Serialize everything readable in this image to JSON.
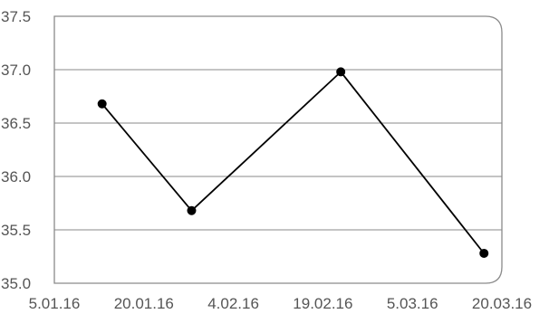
{
  "chart_data": {
    "type": "line",
    "x_axis": {
      "type": "date",
      "ticks": [
        "2016-01-05",
        "2016-01-20",
        "2016-02-04",
        "2016-02-19",
        "2016-03-05",
        "2016-03-20"
      ],
      "tick_labels": [
        "5.01.16",
        "20.01.16",
        "4.02.16",
        "19.02.16",
        "5.03.16",
        "20.03.16"
      ],
      "range": [
        "2016-01-05",
        "2016-03-20"
      ]
    },
    "y_axis": {
      "ticks": [
        35.0,
        35.5,
        36.0,
        36.5,
        37.0,
        37.5
      ],
      "tick_labels": [
        "35.0",
        "35.5",
        "36.0",
        "36.5",
        "37.0",
        "37.5"
      ],
      "range": [
        35.0,
        37.5
      ]
    },
    "grid": "horizontal",
    "series": [
      {
        "color": "#000000",
        "points": [
          {
            "x": "2016-01-13",
            "y": 36.68
          },
          {
            "x": "2016-01-28",
            "y": 35.68
          },
          {
            "x": "2016-02-22",
            "y": 36.98
          },
          {
            "x": "2016-03-17",
            "y": 35.28
          }
        ]
      }
    ]
  }
}
